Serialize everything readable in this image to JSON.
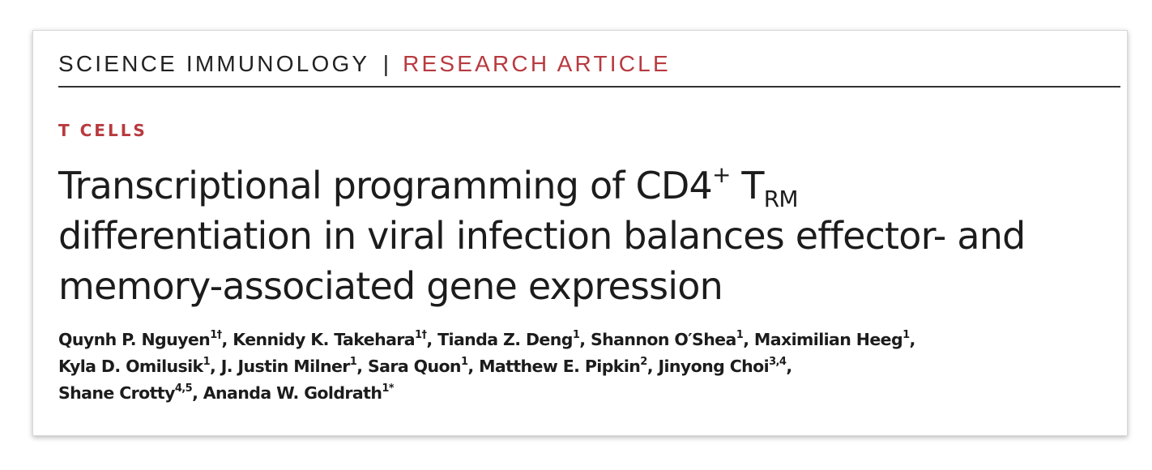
{
  "header": {
    "journal": "SCIENCE IMMUNOLOGY",
    "separator": "|",
    "article_type": "RESEARCH ARTICLE"
  },
  "section": "T CELLS",
  "title": {
    "line1": {
      "text_before": "Transcriptional programming of CD4",
      "sup": "+",
      "text_mid": " T",
      "sub": "RM"
    },
    "line2": "differentiation in viral infection balances effector- and",
    "line3": "memory-associated gene expression"
  },
  "authors": [
    {
      "name": "Quynh P. Nguyen",
      "sup": "1†"
    },
    {
      "name": "Kennidy K. Takehara",
      "sup": "1†"
    },
    {
      "name": "Tianda Z. Deng",
      "sup": "1"
    },
    {
      "name": "Shannon O′Shea",
      "sup": "1"
    },
    {
      "name": "Maximilian Heeg",
      "sup": "1"
    },
    {
      "name": "Kyla D. Omilusik",
      "sup": "1"
    },
    {
      "name": "J. Justin Milner",
      "sup": "1"
    },
    {
      "name": "Sara Quon",
      "sup": "1"
    },
    {
      "name": "Matthew E. Pipkin",
      "sup": "2"
    },
    {
      "name": "Jinyong Choi",
      "sup": "3,4"
    },
    {
      "name": "Shane Crotty",
      "sup": "4,5"
    },
    {
      "name": "Ananda W. Goldrath",
      "sup": "1*"
    }
  ],
  "colors": {
    "accent": "#b83a3f",
    "text": "#1c1c1c",
    "rule": "#333333"
  }
}
